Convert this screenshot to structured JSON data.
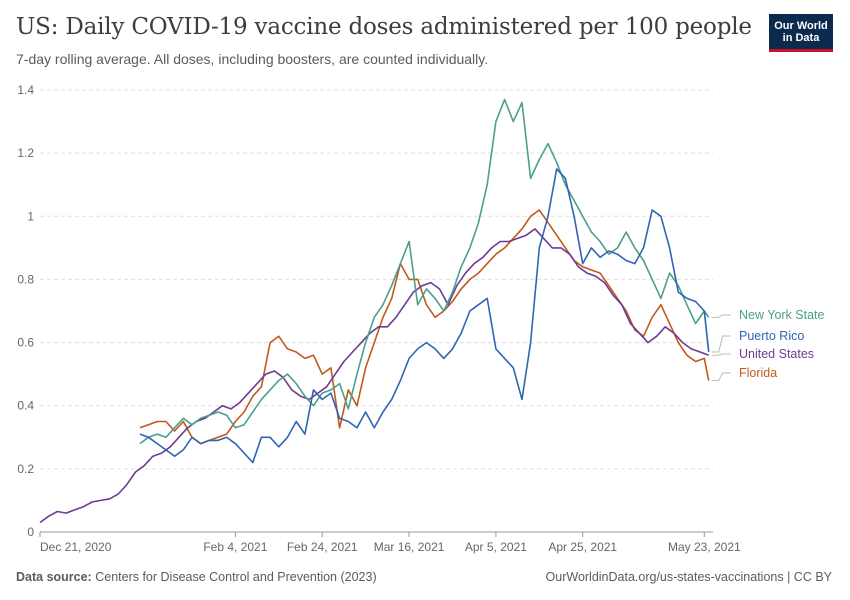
{
  "header": {
    "title": "US: Daily COVID-19 vaccine doses administered per 100 people",
    "subtitle": "7-day rolling average. All doses, including boosters, are counted individually.",
    "logo_line1": "Our World",
    "logo_line2": "in Data"
  },
  "footer": {
    "source_label": "Data source:",
    "source_text": "Centers for Disease Control and Prevention (2023)",
    "right_text": "OurWorldinData.org/us-states-vaccinations | CC BY"
  },
  "colors": {
    "New York State": "#4c9f8a",
    "Puerto Rico": "#2e66b3",
    "United States": "#6d3b92",
    "Florida": "#c05a1c",
    "grid": "#dddddd",
    "axis_text": "#666666"
  },
  "chart_data": {
    "type": "line",
    "x_unit": "days since Dec 21, 2020",
    "x_ticks": [
      {
        "day": 0,
        "label": "Dec 21, 2020"
      },
      {
        "day": 45,
        "label": "Feb 4, 2021"
      },
      {
        "day": 65,
        "label": "Feb 24, 2021"
      },
      {
        "day": 85,
        "label": "Mar 16, 2021"
      },
      {
        "day": 105,
        "label": "Apr 5, 2021"
      },
      {
        "day": 125,
        "label": "Apr 25, 2021"
      },
      {
        "day": 153,
        "label": "May 23, 2021"
      }
    ],
    "xlim": [
      0,
      155
    ],
    "ylim": [
      0,
      1.4
    ],
    "y_ticks": [
      0,
      0.2,
      0.4,
      0.6,
      0.8,
      1,
      1.2,
      1.4
    ],
    "grid": true,
    "series": [
      {
        "name": "United States",
        "points": [
          [
            0,
            0.03
          ],
          [
            2,
            0.05
          ],
          [
            4,
            0.065
          ],
          [
            6,
            0.06
          ],
          [
            8,
            0.07
          ],
          [
            10,
            0.08
          ],
          [
            12,
            0.095
          ],
          [
            14,
            0.1
          ],
          [
            16,
            0.105
          ],
          [
            18,
            0.12
          ],
          [
            20,
            0.15
          ],
          [
            22,
            0.19
          ],
          [
            24,
            0.21
          ],
          [
            26,
            0.24
          ],
          [
            28,
            0.25
          ],
          [
            30,
            0.27
          ],
          [
            32,
            0.3
          ],
          [
            34,
            0.33
          ],
          [
            36,
            0.35
          ],
          [
            38,
            0.36
          ],
          [
            40,
            0.38
          ],
          [
            42,
            0.4
          ],
          [
            44,
            0.39
          ],
          [
            46,
            0.41
          ],
          [
            48,
            0.44
          ],
          [
            50,
            0.47
          ],
          [
            52,
            0.5
          ],
          [
            54,
            0.51
          ],
          [
            56,
            0.49
          ],
          [
            58,
            0.45
          ],
          [
            60,
            0.43
          ],
          [
            62,
            0.42
          ],
          [
            64,
            0.44
          ],
          [
            66,
            0.46
          ],
          [
            68,
            0.5
          ],
          [
            70,
            0.54
          ],
          [
            72,
            0.57
          ],
          [
            74,
            0.6
          ],
          [
            76,
            0.63
          ],
          [
            78,
            0.65
          ],
          [
            80,
            0.65
          ],
          [
            82,
            0.68
          ],
          [
            84,
            0.72
          ],
          [
            86,
            0.76
          ],
          [
            88,
            0.78
          ],
          [
            90,
            0.79
          ],
          [
            92,
            0.77
          ],
          [
            94,
            0.72
          ],
          [
            96,
            0.78
          ],
          [
            98,
            0.82
          ],
          [
            100,
            0.85
          ],
          [
            102,
            0.87
          ],
          [
            104,
            0.9
          ],
          [
            106,
            0.92
          ],
          [
            108,
            0.92
          ],
          [
            110,
            0.93
          ],
          [
            112,
            0.94
          ],
          [
            114,
            0.96
          ],
          [
            116,
            0.93
          ],
          [
            118,
            0.9
          ],
          [
            120,
            0.9
          ],
          [
            122,
            0.88
          ],
          [
            124,
            0.84
          ],
          [
            126,
            0.82
          ],
          [
            128,
            0.81
          ],
          [
            130,
            0.79
          ],
          [
            132,
            0.75
          ],
          [
            134,
            0.72
          ],
          [
            136,
            0.66
          ],
          [
            138,
            0.63
          ],
          [
            140,
            0.6
          ],
          [
            142,
            0.62
          ],
          [
            144,
            0.65
          ],
          [
            146,
            0.63
          ],
          [
            148,
            0.6
          ],
          [
            150,
            0.58
          ],
          [
            152,
            0.57
          ],
          [
            154,
            0.56
          ]
        ]
      },
      {
        "name": "New York State",
        "points": [
          [
            23,
            0.28
          ],
          [
            25,
            0.3
          ],
          [
            27,
            0.31
          ],
          [
            29,
            0.3
          ],
          [
            31,
            0.33
          ],
          [
            33,
            0.36
          ],
          [
            35,
            0.34
          ],
          [
            37,
            0.36
          ],
          [
            39,
            0.37
          ],
          [
            41,
            0.38
          ],
          [
            43,
            0.37
          ],
          [
            45,
            0.33
          ],
          [
            47,
            0.34
          ],
          [
            49,
            0.38
          ],
          [
            51,
            0.42
          ],
          [
            53,
            0.45
          ],
          [
            55,
            0.48
          ],
          [
            57,
            0.5
          ],
          [
            59,
            0.47
          ],
          [
            61,
            0.43
          ],
          [
            63,
            0.4
          ],
          [
            65,
            0.44
          ],
          [
            67,
            0.45
          ],
          [
            69,
            0.47
          ],
          [
            71,
            0.39
          ],
          [
            73,
            0.5
          ],
          [
            75,
            0.6
          ],
          [
            77,
            0.68
          ],
          [
            79,
            0.72
          ],
          [
            81,
            0.78
          ],
          [
            83,
            0.85
          ],
          [
            85,
            0.92
          ],
          [
            87,
            0.72
          ],
          [
            89,
            0.77
          ],
          [
            91,
            0.74
          ],
          [
            93,
            0.7
          ],
          [
            95,
            0.76
          ],
          [
            97,
            0.84
          ],
          [
            99,
            0.9
          ],
          [
            101,
            0.98
          ],
          [
            103,
            1.1
          ],
          [
            105,
            1.3
          ],
          [
            107,
            1.37
          ],
          [
            109,
            1.3
          ],
          [
            111,
            1.36
          ],
          [
            113,
            1.12
          ],
          [
            115,
            1.18
          ],
          [
            117,
            1.23
          ],
          [
            119,
            1.17
          ],
          [
            121,
            1.1
          ],
          [
            123,
            1.05
          ],
          [
            125,
            1.0
          ],
          [
            127,
            0.95
          ],
          [
            129,
            0.92
          ],
          [
            131,
            0.88
          ],
          [
            133,
            0.9
          ],
          [
            135,
            0.95
          ],
          [
            137,
            0.9
          ],
          [
            139,
            0.86
          ],
          [
            141,
            0.8
          ],
          [
            143,
            0.74
          ],
          [
            145,
            0.82
          ],
          [
            147,
            0.78
          ],
          [
            149,
            0.72
          ],
          [
            151,
            0.66
          ],
          [
            153,
            0.7
          ],
          [
            154,
            0.68
          ]
        ]
      },
      {
        "name": "Puerto Rico",
        "points": [
          [
            23,
            0.31
          ],
          [
            25,
            0.3
          ],
          [
            27,
            0.28
          ],
          [
            29,
            0.26
          ],
          [
            31,
            0.24
          ],
          [
            33,
            0.26
          ],
          [
            35,
            0.3
          ],
          [
            37,
            0.28
          ],
          [
            39,
            0.29
          ],
          [
            41,
            0.29
          ],
          [
            43,
            0.3
          ],
          [
            45,
            0.28
          ],
          [
            47,
            0.25
          ],
          [
            49,
            0.22
          ],
          [
            51,
            0.3
          ],
          [
            53,
            0.3
          ],
          [
            55,
            0.27
          ],
          [
            57,
            0.3
          ],
          [
            59,
            0.35
          ],
          [
            61,
            0.31
          ],
          [
            63,
            0.45
          ],
          [
            65,
            0.42
          ],
          [
            67,
            0.44
          ],
          [
            69,
            0.36
          ],
          [
            71,
            0.35
          ],
          [
            73,
            0.33
          ],
          [
            75,
            0.38
          ],
          [
            77,
            0.33
          ],
          [
            79,
            0.38
          ],
          [
            81,
            0.42
          ],
          [
            83,
            0.48
          ],
          [
            85,
            0.55
          ],
          [
            87,
            0.58
          ],
          [
            89,
            0.6
          ],
          [
            91,
            0.58
          ],
          [
            93,
            0.55
          ],
          [
            95,
            0.58
          ],
          [
            97,
            0.63
          ],
          [
            99,
            0.7
          ],
          [
            101,
            0.72
          ],
          [
            103,
            0.74
          ],
          [
            105,
            0.58
          ],
          [
            107,
            0.55
          ],
          [
            109,
            0.52
          ],
          [
            111,
            0.42
          ],
          [
            113,
            0.6
          ],
          [
            115,
            0.9
          ],
          [
            117,
            1.0
          ],
          [
            119,
            1.15
          ],
          [
            121,
            1.12
          ],
          [
            123,
            1.0
          ],
          [
            125,
            0.85
          ],
          [
            127,
            0.9
          ],
          [
            129,
            0.87
          ],
          [
            131,
            0.89
          ],
          [
            133,
            0.88
          ],
          [
            135,
            0.86
          ],
          [
            137,
            0.85
          ],
          [
            139,
            0.9
          ],
          [
            141,
            1.02
          ],
          [
            143,
            1.0
          ],
          [
            145,
            0.9
          ],
          [
            147,
            0.76
          ],
          [
            149,
            0.74
          ],
          [
            151,
            0.73
          ],
          [
            153,
            0.7
          ],
          [
            154,
            0.57
          ]
        ]
      },
      {
        "name": "Florida",
        "points": [
          [
            23,
            0.33
          ],
          [
            25,
            0.34
          ],
          [
            27,
            0.35
          ],
          [
            29,
            0.35
          ],
          [
            31,
            0.32
          ],
          [
            33,
            0.35
          ],
          [
            35,
            0.3
          ],
          [
            37,
            0.28
          ],
          [
            39,
            0.29
          ],
          [
            41,
            0.3
          ],
          [
            43,
            0.31
          ],
          [
            45,
            0.35
          ],
          [
            47,
            0.38
          ],
          [
            49,
            0.43
          ],
          [
            51,
            0.46
          ],
          [
            53,
            0.6
          ],
          [
            55,
            0.62
          ],
          [
            57,
            0.58
          ],
          [
            59,
            0.57
          ],
          [
            61,
            0.55
          ],
          [
            63,
            0.56
          ],
          [
            65,
            0.5
          ],
          [
            67,
            0.52
          ],
          [
            69,
            0.33
          ],
          [
            71,
            0.45
          ],
          [
            73,
            0.4
          ],
          [
            75,
            0.52
          ],
          [
            77,
            0.6
          ],
          [
            79,
            0.68
          ],
          [
            81,
            0.74
          ],
          [
            83,
            0.85
          ],
          [
            85,
            0.8
          ],
          [
            87,
            0.8
          ],
          [
            89,
            0.72
          ],
          [
            91,
            0.68
          ],
          [
            93,
            0.7
          ],
          [
            95,
            0.73
          ],
          [
            97,
            0.77
          ],
          [
            99,
            0.8
          ],
          [
            101,
            0.82
          ],
          [
            103,
            0.85
          ],
          [
            105,
            0.88
          ],
          [
            107,
            0.9
          ],
          [
            109,
            0.93
          ],
          [
            111,
            0.96
          ],
          [
            113,
            1.0
          ],
          [
            115,
            1.02
          ],
          [
            117,
            0.98
          ],
          [
            119,
            0.94
          ],
          [
            121,
            0.9
          ],
          [
            123,
            0.86
          ],
          [
            125,
            0.84
          ],
          [
            127,
            0.83
          ],
          [
            129,
            0.82
          ],
          [
            131,
            0.78
          ],
          [
            133,
            0.74
          ],
          [
            135,
            0.7
          ],
          [
            137,
            0.64
          ],
          [
            139,
            0.62
          ],
          [
            141,
            0.68
          ],
          [
            143,
            0.72
          ],
          [
            145,
            0.66
          ],
          [
            147,
            0.6
          ],
          [
            149,
            0.56
          ],
          [
            151,
            0.54
          ],
          [
            153,
            0.55
          ],
          [
            154,
            0.48
          ]
        ]
      }
    ],
    "legend": {
      "placement": "right, at line ends",
      "entries": [
        "New York State",
        "Puerto Rico",
        "United States",
        "Florida"
      ]
    }
  }
}
